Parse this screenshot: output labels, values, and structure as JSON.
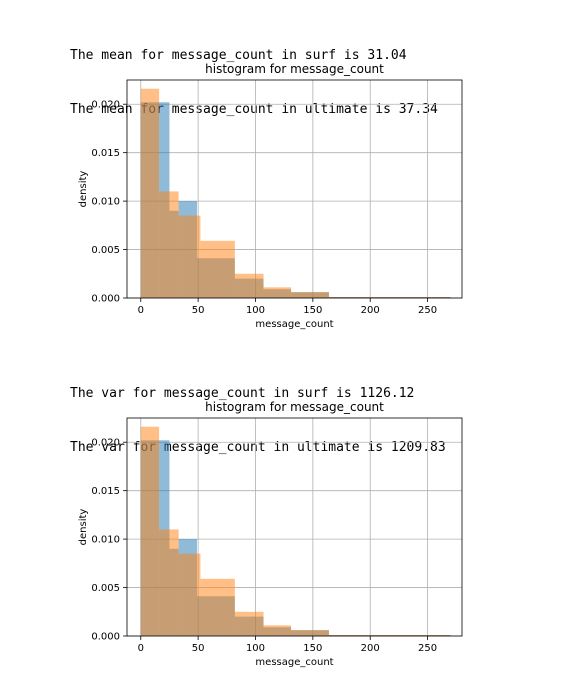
{
  "outputs": [
    {
      "lines": [
        "The mean for message_count in surf is 31.04",
        "The mean for message_count in ultimate is 37.34"
      ]
    },
    {
      "lines": [
        "The var for message_count in surf is 1126.12",
        "The var for message_count in ultimate is 1209.83"
      ]
    }
  ],
  "chart_data": [
    {
      "type": "bar",
      "title": "histogram for message_count",
      "xlabel": "message_count",
      "ylabel": "density",
      "xlim": [
        -12,
        280
      ],
      "ylim": [
        0,
        0.0225
      ],
      "xticks": [
        0,
        50,
        100,
        150,
        200,
        250
      ],
      "yticks": [
        "0.000",
        "0.005",
        "0.010",
        "0.015",
        "0.020"
      ],
      "grid": true,
      "series": [
        {
          "color": "#1f77b4",
          "opacity": 0.5,
          "bins": [
            [
              0,
              16,
              0.0202
            ],
            [
              16,
              25,
              0.0202
            ],
            [
              25,
              33,
              0.009
            ],
            [
              33,
              49,
              0.01
            ],
            [
              49,
              82,
              0.0041
            ],
            [
              82,
              107,
              0.002
            ],
            [
              107,
              131,
              0.0009
            ],
            [
              131,
              164,
              0.0006
            ],
            [
              164,
              270,
              0.0001
            ]
          ]
        },
        {
          "color": "#ff7f0e",
          "opacity": 0.5,
          "bins": [
            [
              0,
              16,
              0.0216
            ],
            [
              16,
              33,
              0.011
            ],
            [
              33,
              52,
              0.0085
            ],
            [
              52,
              82,
              0.0059
            ],
            [
              82,
              107,
              0.0025
            ],
            [
              107,
              131,
              0.0011
            ],
            [
              131,
              164,
              0.0006
            ],
            [
              164,
              270,
              0.0001
            ]
          ]
        }
      ]
    },
    {
      "type": "bar",
      "title": "histogram for message_count",
      "xlabel": "message_count",
      "ylabel": "density",
      "xlim": [
        -12,
        280
      ],
      "ylim": [
        0,
        0.0225
      ],
      "xticks": [
        0,
        50,
        100,
        150,
        200,
        250
      ],
      "yticks": [
        "0.000",
        "0.005",
        "0.010",
        "0.015",
        "0.020"
      ],
      "grid": true,
      "series": [
        {
          "color": "#1f77b4",
          "opacity": 0.5,
          "bins": [
            [
              0,
              16,
              0.0202
            ],
            [
              16,
              25,
              0.0202
            ],
            [
              25,
              33,
              0.009
            ],
            [
              33,
              49,
              0.01
            ],
            [
              49,
              82,
              0.0041
            ],
            [
              82,
              107,
              0.002
            ],
            [
              107,
              131,
              0.0009
            ],
            [
              131,
              164,
              0.0006
            ],
            [
              164,
              270,
              0.0001
            ]
          ]
        },
        {
          "color": "#ff7f0e",
          "opacity": 0.5,
          "bins": [
            [
              0,
              16,
              0.0216
            ],
            [
              16,
              33,
              0.011
            ],
            [
              33,
              52,
              0.0085
            ],
            [
              52,
              82,
              0.0059
            ],
            [
              82,
              107,
              0.0025
            ],
            [
              107,
              131,
              0.0011
            ],
            [
              131,
              164,
              0.0006
            ],
            [
              164,
              270,
              0.0001
            ]
          ]
        }
      ]
    }
  ]
}
